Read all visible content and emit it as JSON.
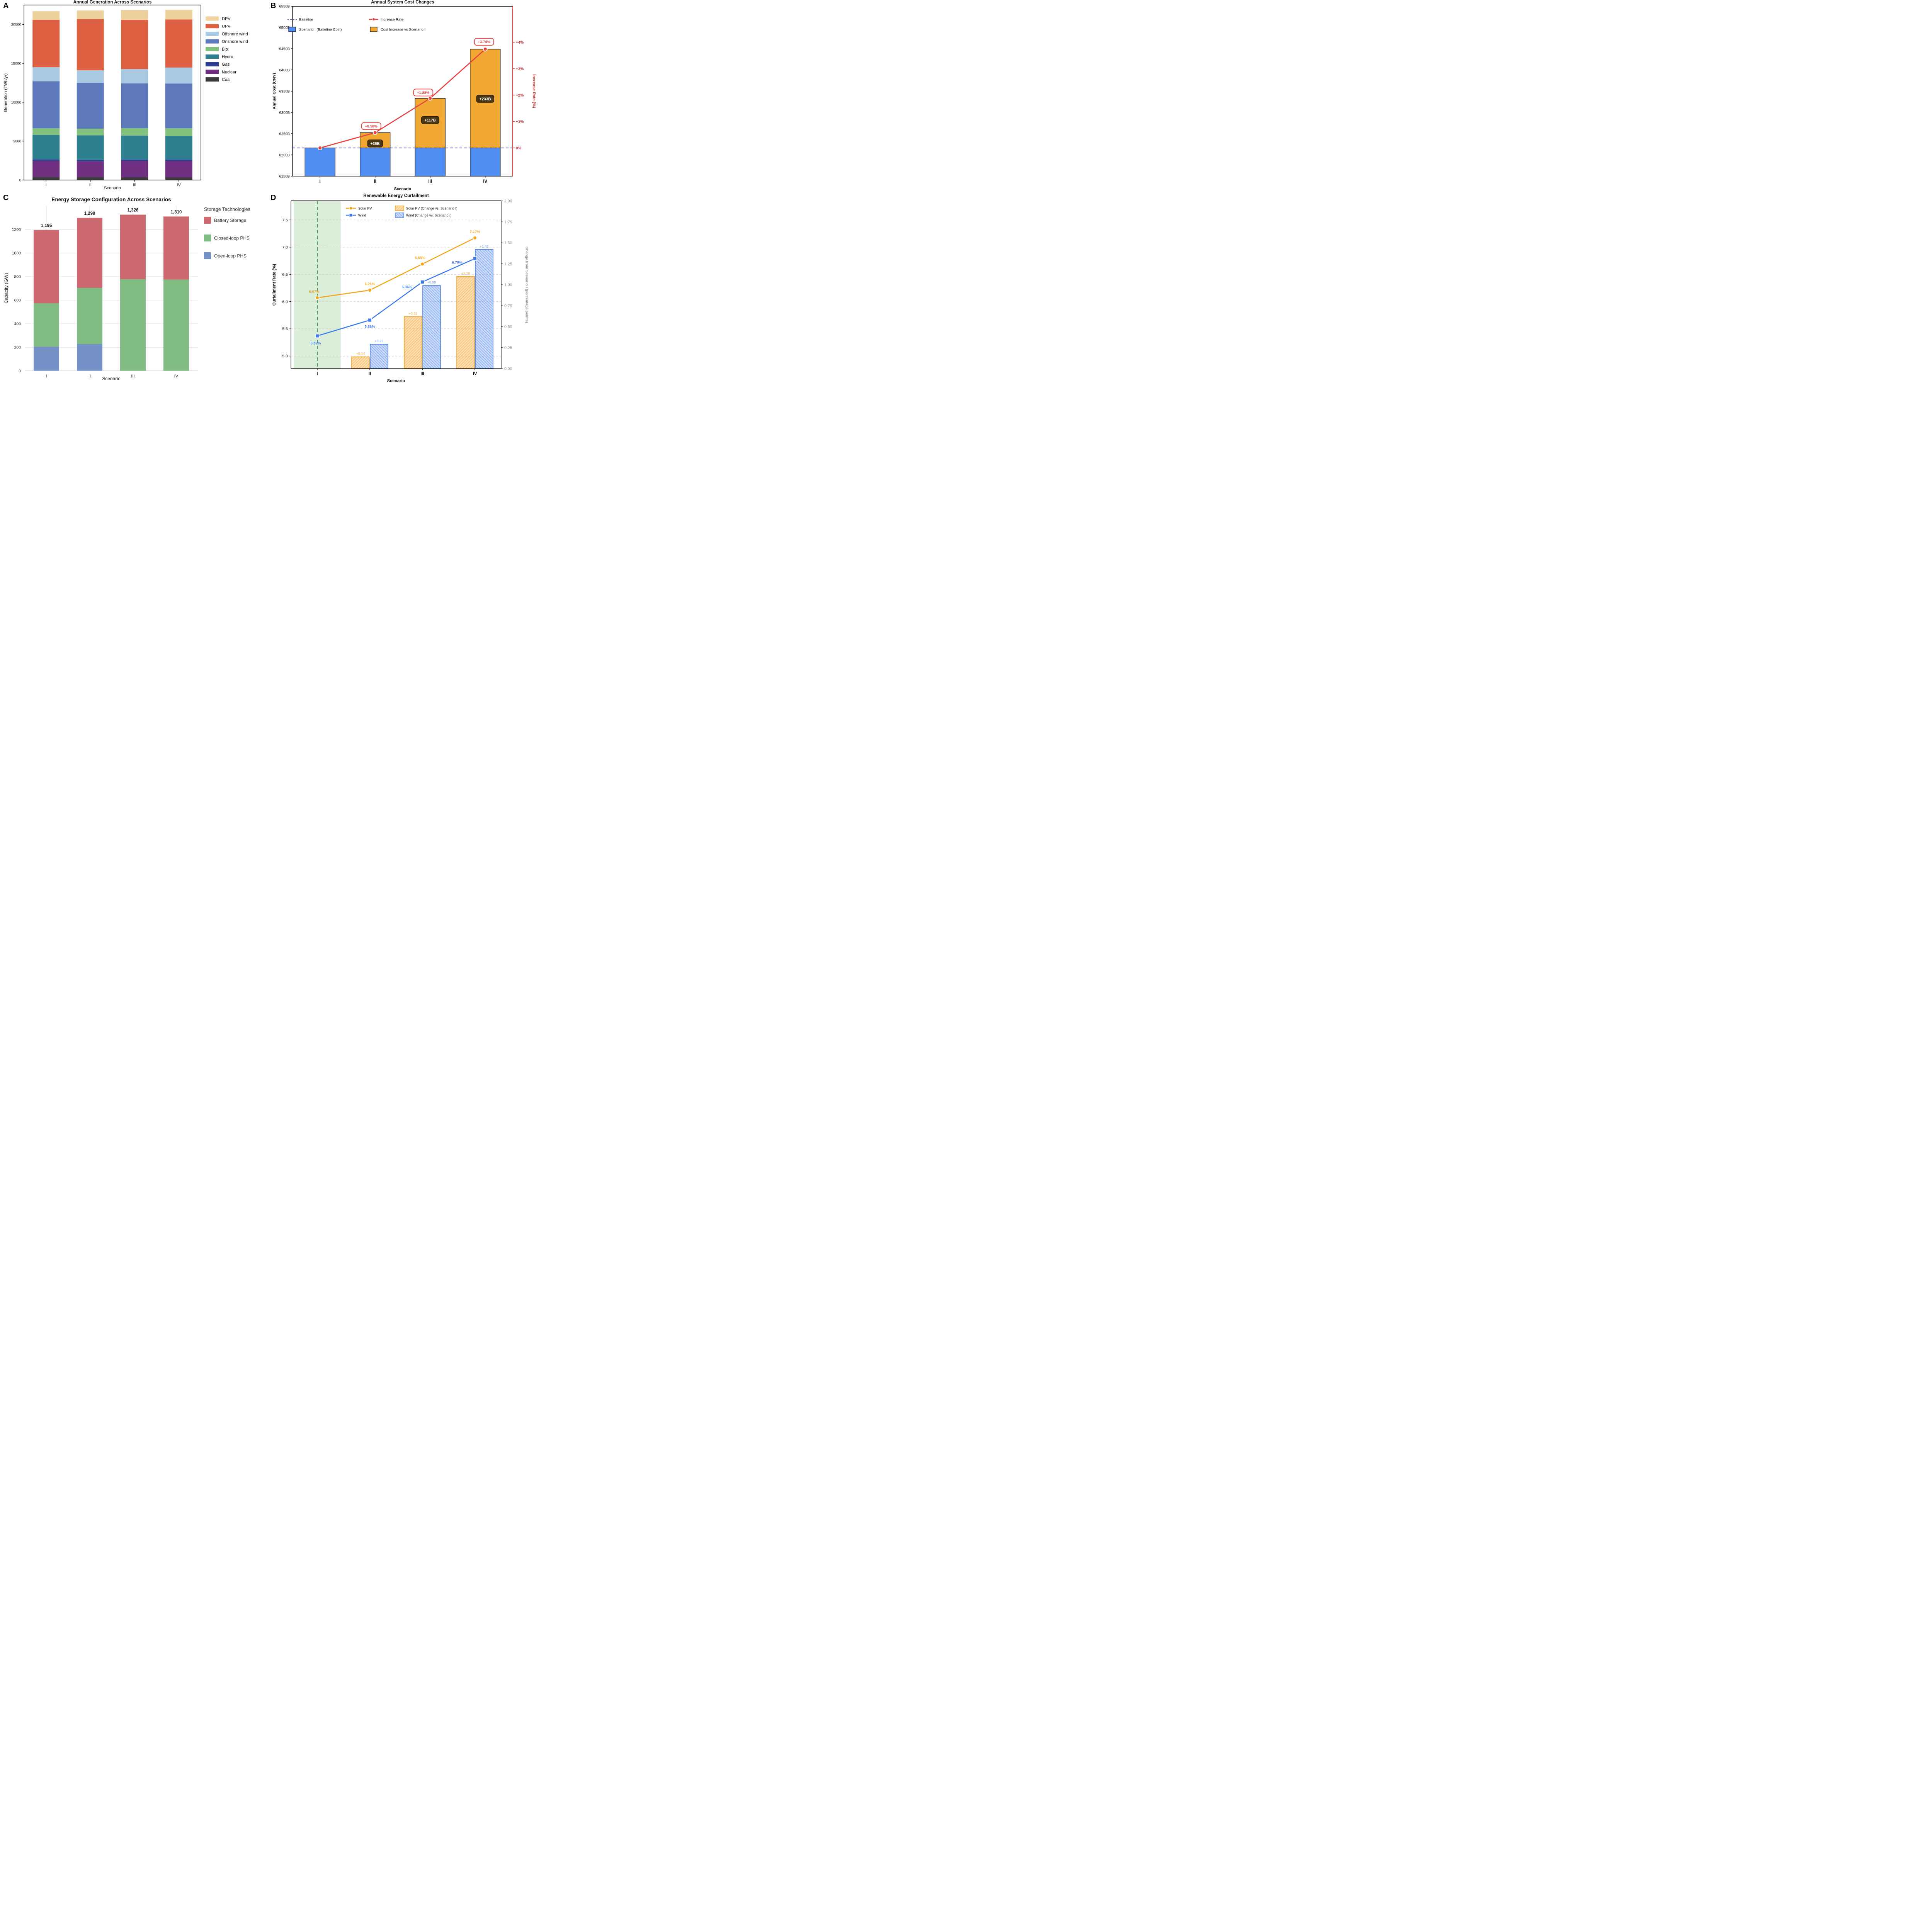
{
  "figure": {
    "background": "#ffffff"
  },
  "panels": {
    "a": {
      "letter": "A",
      "title": "Annual Generation Across Scenarios",
      "xlabel": "Scenario",
      "ylabel": "Generation (TWh/yr)"
    },
    "b": {
      "letter": "B",
      "title": "Annual System Cost Changes",
      "xlabel": "Scenario",
      "ylabel": "Annual Cost (CNY)",
      "ylabel_right": "Increase Rate (%)"
    },
    "c": {
      "letter": "C",
      "title": "Energy Storage Configuration Across Scenarios",
      "xlabel": "Scenario",
      "ylabel": "Capacity (GW)",
      "legend_title": "Storage Technologies"
    },
    "d": {
      "letter": "D",
      "title": "Renewable Energy Curtailment",
      "xlabel": "Scenario",
      "ylabel": "Curtailment Rate (%)",
      "ylabel_right": "Change from Scenario I (percentage points)"
    }
  },
  "chart_data": [
    {
      "panel": "A",
      "type": "bar",
      "stacked": true,
      "title": "Annual Generation Across Scenarios",
      "xlabel": "Scenario",
      "ylabel": "Generation (TWh/yr)",
      "categories": [
        "I",
        "II",
        "III",
        "IV"
      ],
      "ylim": [
        0,
        22500
      ],
      "yticks": [
        0,
        5000,
        10000,
        15000,
        20000
      ],
      "series": [
        {
          "name": "Coal",
          "color": "#3b3b3b",
          "values": [
            390,
            380,
            360,
            350
          ]
        },
        {
          "name": "Nuclear",
          "color": "#6e2f80",
          "values": [
            2060,
            2020,
            2100,
            2100
          ]
        },
        {
          "name": "Gas",
          "color": "#2e3e90",
          "values": [
            200,
            190,
            160,
            160
          ]
        },
        {
          "name": "Hydro",
          "color": "#2d7e8f",
          "values": [
            3150,
            3150,
            3100,
            3050
          ]
        },
        {
          "name": "Bio",
          "color": "#82c27e",
          "values": [
            850,
            860,
            950,
            1000
          ]
        },
        {
          "name": "Onshore wind",
          "color": "#5d79bb",
          "values": [
            6050,
            5900,
            5750,
            5750
          ]
        },
        {
          "name": "Offshore wind",
          "color": "#a9c8e1",
          "values": [
            1800,
            1600,
            1850,
            2050
          ]
        },
        {
          "name": "UPV",
          "color": "#df6144",
          "values": [
            6100,
            6600,
            6350,
            6190
          ]
        },
        {
          "name": "DPV",
          "color": "#edd29e",
          "values": [
            1100,
            1100,
            1230,
            1250
          ]
        }
      ],
      "legend_order": [
        "DPV",
        "UPV",
        "Offshore wind",
        "Onshore wind",
        "Bio",
        "Hydro",
        "Gas",
        "Nuclear",
        "Coal"
      ],
      "legend_position": "right"
    },
    {
      "panel": "B",
      "type": "bar+line",
      "title": "Annual System Cost Changes",
      "xlabel": "Scenario",
      "ylabel": "Annual Cost (CNY)",
      "ylabel_right": "Increase Rate (%)",
      "categories": [
        "I",
        "II",
        "III",
        "IV"
      ],
      "baseline_cost": 6216.4,
      "costs": [
        6216.4,
        6252.4,
        6333.2,
        6448.9
      ],
      "increases": [
        0,
        36,
        117,
        233
      ],
      "increase_labels": [
        "+36B",
        "+117B",
        "+233B"
      ],
      "rates": [
        0,
        0.58,
        1.88,
        3.74
      ],
      "rate_labels": [
        "+0.58%",
        "+1.88%",
        "+3.74%"
      ],
      "ylim": [
        6150,
        6550
      ],
      "yticks": [
        6150,
        6200,
        6250,
        6300,
        6350,
        6400,
        6450,
        6500,
        6550
      ],
      "ytick_labels": [
        "6150B",
        "6200B",
        "6250B",
        "6300B",
        "6350B",
        "6400B",
        "6450B",
        "6500B",
        "6550B"
      ],
      "right_ticks": [
        0,
        1,
        2,
        3,
        4
      ],
      "right_tick_labels": [
        "0%",
        "+1%",
        "+2%",
        "+3%",
        "+4%"
      ],
      "colors": {
        "baseline_bar": "#4e8df2",
        "increase_bar": "#f0a832",
        "rate_line": "#e84342",
        "baseline_line": "#5b5fae",
        "annotation_box": "#493813",
        "bar_edge": "#141414"
      },
      "legend": [
        {
          "label": "Baseline",
          "type": "dashed-line"
        },
        {
          "label": "Increase Rate",
          "type": "line-dot"
        },
        {
          "label": "Scenario I (Baseline Cost)",
          "type": "box-blue"
        },
        {
          "label": "Cost Increase vs Scenario I",
          "type": "box-orange"
        }
      ]
    },
    {
      "panel": "C",
      "type": "bar",
      "stacked": true,
      "title": "Energy Storage Configuration Across Scenarios",
      "xlabel": "Scenario",
      "ylabel": "Capacity (GW)",
      "categories": [
        "I",
        "II",
        "III",
        "IV"
      ],
      "ylim": [
        0,
        1400
      ],
      "yticks": [
        0,
        200,
        400,
        600,
        800,
        1000,
        1200
      ],
      "series": [
        {
          "name": "Open-loop PHS",
          "color": "#7492c7",
          "values": [
            205,
            228,
            0,
            0
          ]
        },
        {
          "name": "Closed-loop PHS",
          "color": "#80bc81",
          "values": [
            370,
            477,
            778,
            775
          ]
        },
        {
          "name": "Battery Storage",
          "color": "#cd6971",
          "values": [
            620,
            594,
            548,
            535
          ]
        }
      ],
      "totals": [
        1195,
        1299,
        1326,
        1310
      ],
      "total_labels": [
        "1,195",
        "1,299",
        "1,326",
        "1,310"
      ],
      "legend_title": "Storage Technologies",
      "legend_order": [
        "Battery Storage",
        "Closed-loop PHS",
        "Open-loop PHS"
      ]
    },
    {
      "panel": "D",
      "type": "line+bar",
      "title": "Renewable Energy Curtailment",
      "xlabel": "Scenario",
      "ylabel": "Curtailment Rate (%)",
      "ylabel_right": "Change from Scenario I (percentage points)",
      "categories": [
        "I",
        "II",
        "III",
        "IV"
      ],
      "ylim_left": [
        4.77,
        7.85
      ],
      "yticks_left": [
        5.0,
        5.5,
        6.0,
        6.5,
        7.0,
        7.5
      ],
      "ytick_left_labels": [
        "5.0",
        "5.5",
        "6.0",
        "6.5",
        "7.0",
        "7.5"
      ],
      "ylim_right": [
        0,
        2
      ],
      "yticks_right": [
        0,
        0.25,
        0.5,
        0.75,
        1.0,
        1.25,
        1.5,
        1.75,
        2.0
      ],
      "ytick_right_labels": [
        "0.00",
        "0.25",
        "0.50",
        "0.75",
        "1.00",
        "1.25",
        "1.50",
        "1.75",
        "2.00"
      ],
      "solar": {
        "name": "Solar PV",
        "color": "#f2a71f",
        "values": [
          6.07,
          6.21,
          6.69,
          7.17
        ],
        "labels": [
          "6.07%",
          "6.21%",
          "6.69%",
          "7.17%"
        ]
      },
      "wind": {
        "name": "Wind",
        "color": "#3d7af0",
        "values": [
          5.37,
          5.66,
          6.36,
          6.79
        ],
        "labels": [
          "5.37%",
          "5.66%",
          "6.36%",
          "6.79%"
        ]
      },
      "solar_change": {
        "name": "Solar PV (Change vs. Scenario I)",
        "values": [
          0.14,
          0.62,
          1.1
        ],
        "labels": [
          "+0.14",
          "+0.62",
          "+1.10"
        ],
        "label_color": "#f5c47d",
        "edge_color": "#ef9d20",
        "fill": "rgba(247,166,44,0.38)"
      },
      "wind_change": {
        "name": "Wind (Change vs. Scenario I)",
        "values": [
          0.29,
          0.99,
          1.42
        ],
        "labels": [
          "+0.29",
          "+0.99",
          "+1.42"
        ],
        "label_color": "#9dc0f5",
        "edge_color": "#4a82ea",
        "fill": "rgba(110,155,240,0.38)"
      },
      "highlight": {
        "category": "I",
        "band_color": "rgba(167,214,168,0.42)",
        "line_color": "#3f8f44"
      },
      "legend": [
        "Solar PV",
        "Solar PV (Change vs. Scenario I)",
        "Wind",
        "Wind (Change vs. Scenario I)"
      ]
    }
  ]
}
